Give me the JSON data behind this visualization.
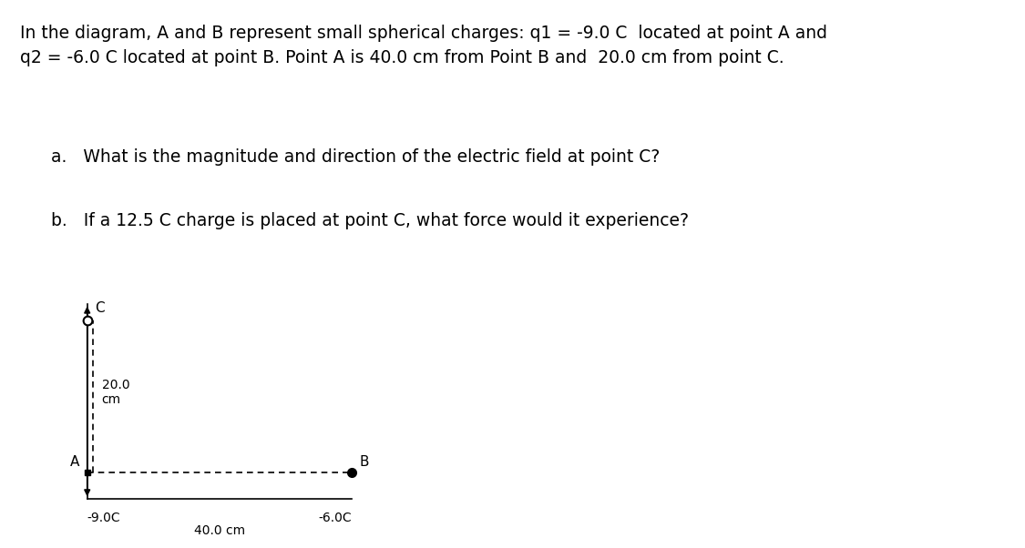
{
  "title_text": "In the diagram, A and B represent small spherical charges: q1 = -9.0 C  located at point A and\nq2 = -6.0 C located at point B. Point A is 40.0 cm from Point B and  20.0 cm from point C.",
  "question_a": "a.   What is the magnitude and direction of the electric field at point C?",
  "question_b": "b.   If a 12.5 C charge is placed at point C, what force would it experience?",
  "background_color": "#ffffff",
  "text_color": "#000000",
  "diagram": {
    "A": [
      0,
      0
    ],
    "B": [
      4,
      0
    ],
    "C": [
      0,
      2
    ],
    "label_A": "A",
    "label_B": "B",
    "label_C": "C",
    "charge_A": "-9.0C",
    "charge_B": "-6.0C",
    "dist_AC": "20.0\ncm",
    "dist_AB": "40.0 cm",
    "arrow_color": "#000000",
    "dot_color_B": "#000000",
    "circle_color_C": "#000000",
    "line_color_solid": "#000000",
    "line_color_dashed": "#000000"
  }
}
